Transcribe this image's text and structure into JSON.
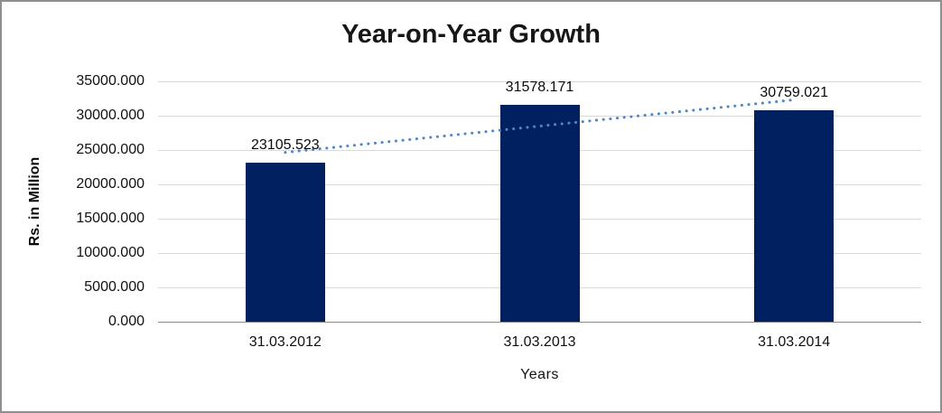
{
  "chart_data": {
    "type": "bar",
    "title": "Year-on-Year Growth",
    "categories": [
      "31.03.2012",
      "31.03.2013",
      "31.03.2014"
    ],
    "values": [
      23105.523,
      31578.171,
      30759.021
    ],
    "data_labels": [
      "23105.523",
      "31578.171",
      "30759.021"
    ],
    "xlabel": "Years",
    "ylabel": "Rs. in Million",
    "ylim": [
      0,
      35000
    ],
    "ytick_interval": 5000,
    "ytick_labels": [
      "0.000",
      "5000.000",
      "10000.000",
      "15000.000",
      "20000.000",
      "25000.000",
      "30000.000",
      "35000.000"
    ],
    "grid": true,
    "legend": "none",
    "trendline": {
      "type": "linear",
      "line_style": "dotted"
    },
    "colors": {
      "bar": "#002060",
      "trendline": "#4f86c6",
      "gridline": "#d9d9d9",
      "axis_line": "#8a8a8a",
      "frame_border": "#8f8f8f",
      "text": "#111111",
      "background": "#ffffff"
    }
  }
}
